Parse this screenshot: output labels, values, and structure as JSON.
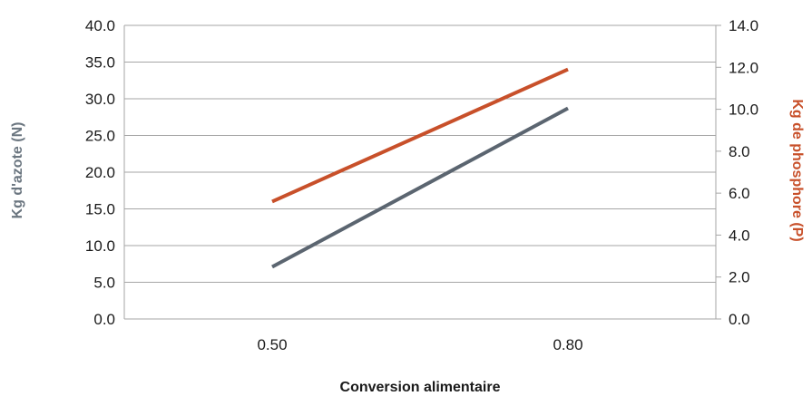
{
  "chart_data": {
    "type": "line",
    "categories": [
      "0.50",
      "0.80"
    ],
    "xlabel": "Conversion alimentaire",
    "ylabel": "Kg d'azote (N)",
    "y2label": "Kg de phosphore (P)",
    "ylim": [
      0,
      40
    ],
    "y2lim": [
      0,
      14
    ],
    "yticks": [
      "0.0",
      "5.0",
      "10.0",
      "15.0",
      "20.0",
      "25.0",
      "30.0",
      "35.0",
      "40.0"
    ],
    "y2ticks": [
      "0.0",
      "2.0",
      "4.0",
      "6.0",
      "8.0",
      "10.0",
      "12.0",
      "14.0"
    ],
    "grid": true,
    "series": [
      {
        "axis": "left",
        "color": "#5b6570",
        "values": [
          7.1,
          28.7
        ]
      },
      {
        "axis": "right",
        "color": "#c8502a",
        "values": [
          5.6,
          11.9
        ]
      }
    ],
    "colors": {
      "left_title": "#6b7680",
      "right_title": "#c8502a",
      "grid": "#a6a6a6"
    }
  }
}
